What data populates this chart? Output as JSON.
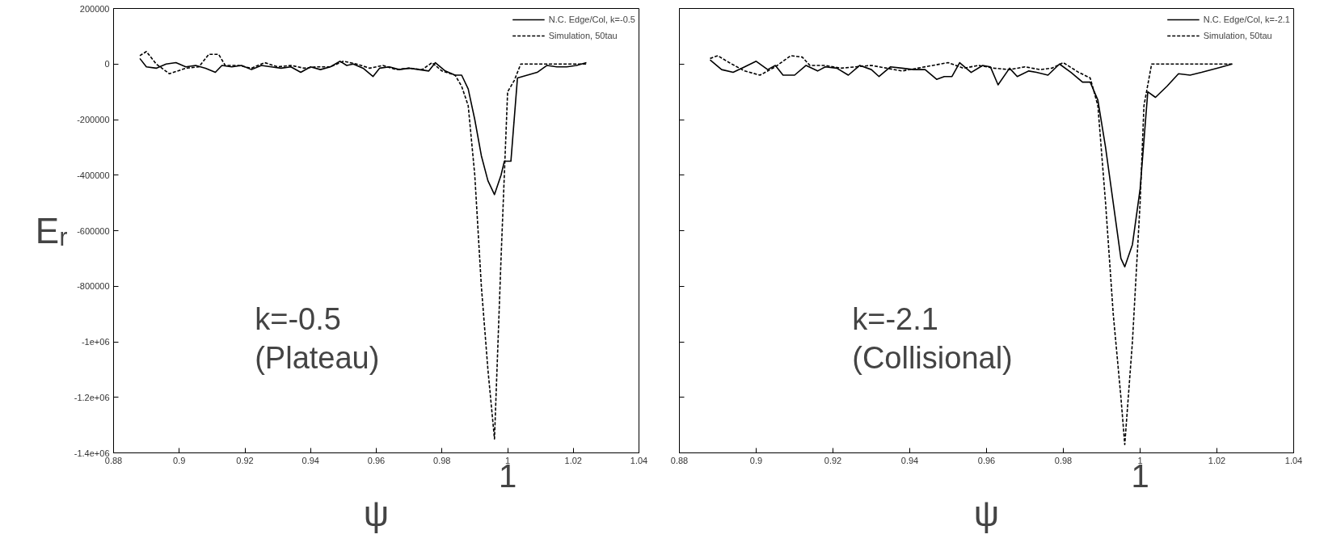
{
  "chart_data": [
    {
      "type": "line",
      "xlabel": "ψ",
      "ylabel": "Eᵣ",
      "xlim": [
        0.88,
        1.04
      ],
      "ylim": [
        -1400000,
        200000
      ],
      "xticks": [
        0.88,
        0.9,
        0.92,
        0.94,
        0.96,
        0.98,
        1,
        1.02,
        1.04
      ],
      "yticks": [
        {
          "value": -1400000,
          "label": "-1.4e+06"
        },
        {
          "value": -1200000,
          "label": "-1.2e+06"
        },
        {
          "value": -1000000,
          "label": "-1e+06"
        },
        -800000,
        -600000,
        -400000,
        -200000,
        0,
        200000
      ],
      "grid": false,
      "legend": "top right",
      "annotations": [
        "k=-0.5\n(Plateau)",
        "1"
      ],
      "series": [
        {
          "name": "N.C. Edge/Col, k=-0.5",
          "color": "#000000",
          "line_style": "solid",
          "x": [
            0.888,
            0.89,
            0.893,
            0.896,
            0.899,
            0.902,
            0.905,
            0.908,
            0.911,
            0.913,
            0.916,
            0.919,
            0.922,
            0.925,
            0.928,
            0.931,
            0.934,
            0.937,
            0.94,
            0.943,
            0.946,
            0.949,
            0.951,
            0.953,
            0.956,
            0.959,
            0.961,
            0.964,
            0.967,
            0.97,
            0.973,
            0.976,
            0.978,
            0.981,
            0.984,
            0.986,
            0.988,
            0.99,
            0.992,
            0.994,
            0.996,
            0.998,
            0.999,
            1.001,
            1.003,
            1.006,
            1.009,
            1.012,
            1.015,
            1.018,
            1.021,
            1.024
          ],
          "values": [
            20000,
            -10000,
            -15000,
            0,
            5000,
            -10000,
            -5000,
            -15000,
            -30000,
            -5000,
            -10000,
            -5000,
            -20000,
            -5000,
            -10000,
            -15000,
            -10000,
            -30000,
            -10000,
            -20000,
            -10000,
            10000,
            -5000,
            0,
            -15000,
            -45000,
            -15000,
            -10000,
            -20000,
            -15000,
            -20000,
            -25000,
            5000,
            -25000,
            -40000,
            -40000,
            -90000,
            -200000,
            -330000,
            -420000,
            -470000,
            -400000,
            -350000,
            -350000,
            -50000,
            -40000,
            -30000,
            -5000,
            -10000,
            -10000,
            -5000,
            5000
          ]
        },
        {
          "name": "Simulation, 50tau",
          "color": "#000000",
          "line_style": "dashed",
          "x": [
            0.888,
            0.89,
            0.893,
            0.897,
            0.902,
            0.906,
            0.909,
            0.912,
            0.914,
            0.918,
            0.922,
            0.926,
            0.93,
            0.934,
            0.938,
            0.942,
            0.946,
            0.95,
            0.954,
            0.958,
            0.962,
            0.966,
            0.97,
            0.974,
            0.977,
            0.98,
            0.984,
            0.986,
            0.988,
            0.99,
            0.992,
            0.994,
            0.996,
            0.998,
            1.0,
            1.002,
            1.004,
            1.01,
            1.016,
            1.024
          ],
          "values": [
            30000,
            45000,
            0,
            -35000,
            -15000,
            -10000,
            35000,
            35000,
            -5000,
            -5000,
            -15000,
            5000,
            -10000,
            -5000,
            -15000,
            -10000,
            -10000,
            10000,
            0,
            -15000,
            -5000,
            -20000,
            -15000,
            -20000,
            5000,
            -25000,
            -40000,
            -80000,
            -150000,
            -400000,
            -800000,
            -1100000,
            -1350000,
            -700000,
            -100000,
            -60000,
            0,
            0,
            0,
            0
          ]
        }
      ]
    },
    {
      "type": "line",
      "xlabel": "ψ",
      "xlim": [
        0.88,
        1.04
      ],
      "ylim": [
        -1400000,
        200000
      ],
      "xticks": [
        0.88,
        0.9,
        0.92,
        0.94,
        0.96,
        0.98,
        1,
        1.02,
        1.04
      ],
      "yticks": [
        {
          "value": -1400000,
          "label": null
        },
        {
          "value": -1200000,
          "label": null
        },
        {
          "value": -1000000,
          "label": null
        },
        {
          "value": -800000,
          "label": null
        },
        {
          "value": -600000,
          "label": null
        },
        {
          "value": -400000,
          "label": null
        },
        {
          "value": -200000,
          "label": null
        },
        {
          "value": 0,
          "label": null
        },
        {
          "value": 200000,
          "label": null
        }
      ],
      "tick_labels": "x",
      "grid": false,
      "legend": "top right",
      "annotations": [
        "k=-2.1\n(Collisional)",
        "1"
      ],
      "series": [
        {
          "name": "N.C. Edge/Col, k=-2.1",
          "color": "#000000",
          "line_style": "solid",
          "x": [
            0.888,
            0.891,
            0.894,
            0.897,
            0.9,
            0.903,
            0.905,
            0.907,
            0.91,
            0.913,
            0.916,
            0.918,
            0.921,
            0.924,
            0.927,
            0.93,
            0.932,
            0.935,
            0.938,
            0.941,
            0.944,
            0.947,
            0.949,
            0.951,
            0.953,
            0.956,
            0.959,
            0.961,
            0.963,
            0.966,
            0.968,
            0.971,
            0.973,
            0.976,
            0.979,
            0.982,
            0.985,
            0.987,
            0.989,
            0.991,
            0.993,
            0.995,
            0.996,
            0.998,
            1.0,
            1.002,
            1.004,
            1.007,
            1.01,
            1.013,
            1.016,
            1.02,
            1.024
          ],
          "values": [
            15000,
            -20000,
            -30000,
            -10000,
            10000,
            -20000,
            -5000,
            -40000,
            -40000,
            -5000,
            -25000,
            -10000,
            -15000,
            -40000,
            -5000,
            -20000,
            -45000,
            -10000,
            -15000,
            -20000,
            -20000,
            -55000,
            -45000,
            -45000,
            5000,
            -30000,
            -5000,
            -10000,
            -75000,
            -15000,
            -45000,
            -25000,
            -30000,
            -40000,
            0,
            -30000,
            -65000,
            -65000,
            -130000,
            -300000,
            -500000,
            -700000,
            -730000,
            -650000,
            -450000,
            -100000,
            -120000,
            -80000,
            -35000,
            -40000,
            -30000,
            -15000,
            0
          ]
        },
        {
          "name": "Simulation, 50tau",
          "color": "#000000",
          "line_style": "dashed",
          "x": [
            0.888,
            0.89,
            0.893,
            0.897,
            0.901,
            0.905,
            0.909,
            0.912,
            0.914,
            0.918,
            0.922,
            0.926,
            0.93,
            0.934,
            0.938,
            0.942,
            0.946,
            0.95,
            0.954,
            0.958,
            0.962,
            0.966,
            0.97,
            0.974,
            0.977,
            0.98,
            0.984,
            0.987,
            0.989,
            0.991,
            0.993,
            0.995,
            0.996,
            0.998,
            1.0,
            1.001,
            1.003,
            1.01,
            1.016,
            1.024
          ],
          "values": [
            20000,
            30000,
            5000,
            -25000,
            -40000,
            -10000,
            30000,
            25000,
            -5000,
            -5000,
            -15000,
            -10000,
            -5000,
            -15000,
            -25000,
            -15000,
            -5000,
            5000,
            -15000,
            -5000,
            -15000,
            -20000,
            -10000,
            -20000,
            -15000,
            5000,
            -30000,
            -50000,
            -150000,
            -500000,
            -900000,
            -1200000,
            -1370000,
            -1000000,
            -500000,
            -150000,
            0,
            0,
            0,
            0
          ]
        }
      ]
    }
  ]
}
